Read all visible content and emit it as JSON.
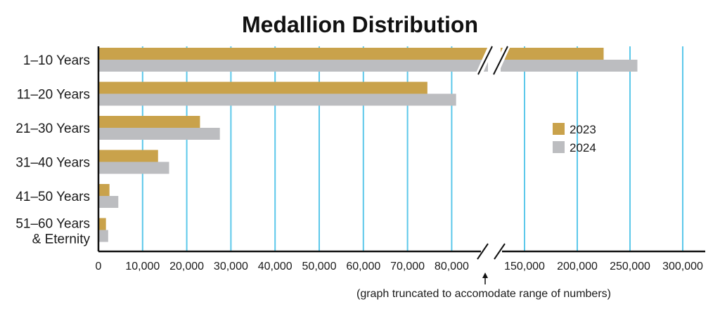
{
  "chart_data": {
    "type": "bar",
    "orientation": "horizontal",
    "title": "Medallion Distribution",
    "categories": [
      "1–10 Years",
      "11–20 Years",
      "21–30 Years",
      "31–40 Years",
      "41–50 Years",
      "51–60 Years & Eternity"
    ],
    "category_lines": [
      [
        "1–10 Years"
      ],
      [
        "11–20 Years"
      ],
      [
        "21–30 Years"
      ],
      [
        "31–40 Years"
      ],
      [
        "41–50 Years"
      ],
      [
        "51–60 Years",
        "& Eternity"
      ]
    ],
    "series": [
      {
        "name": "2023",
        "color": "#c9a24b",
        "values": [
          225000,
          74500,
          23000,
          13500,
          2500,
          1700
        ]
      },
      {
        "name": "2024",
        "color": "#bcbdc0",
        "values": [
          257000,
          81000,
          27500,
          16000,
          4500,
          2200
        ]
      }
    ],
    "x_ticks": [
      "0",
      "10,000",
      "20,000",
      "30,000",
      "40,000",
      "50,000",
      "60,000",
      "70,000",
      "80,000",
      "150,000",
      "200,000",
      "250,000",
      "300,000"
    ],
    "x_axis": {
      "segments": [
        {
          "min": 0,
          "max": 87000
        },
        {
          "min": 125000,
          "max": 300000
        }
      ],
      "break": true
    },
    "grid_color": "#5cc8ea",
    "legend_position": "right",
    "annotation": "(graph truncated to accomodate range of numbers)"
  }
}
